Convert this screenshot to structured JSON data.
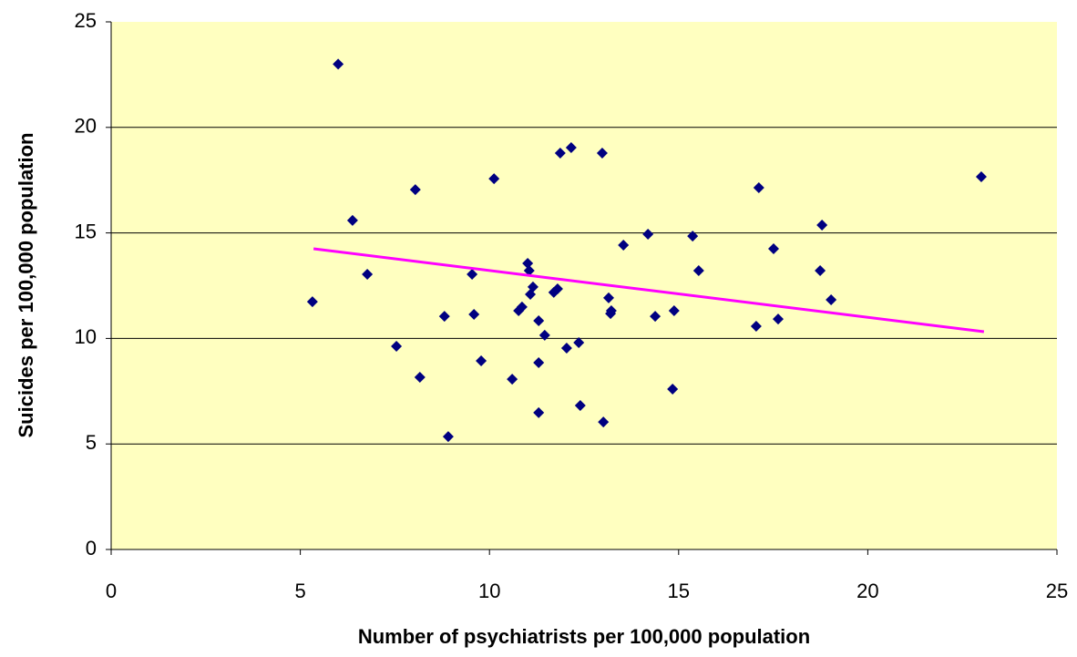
{
  "chart_data": {
    "type": "scatter",
    "x_label": "Number of psychiatrists per 100,000 population",
    "y_label": "Suicides per 100,000 population",
    "xlim": [
      0,
      25
    ],
    "ylim": [
      0,
      25
    ],
    "xticks": [
      0,
      5,
      10,
      15,
      20,
      25
    ],
    "yticks": [
      0,
      5,
      10,
      15,
      20,
      25
    ],
    "grid": true,
    "background": "#ffffc0",
    "series": [
      {
        "color": "#000080",
        "x": [
          5.32,
          6.0,
          6.38,
          6.77,
          7.54,
          8.04,
          8.16,
          8.81,
          8.91,
          9.54,
          9.59,
          9.78,
          10.12,
          10.6,
          10.77,
          10.86,
          11.01,
          11.05,
          11.08,
          11.15,
          11.3,
          11.3,
          11.3,
          11.46,
          11.7,
          11.8,
          11.87,
          12.04,
          12.16,
          12.36,
          12.4,
          12.98,
          13.01,
          13.15,
          13.2,
          13.22,
          13.54,
          14.19,
          14.38,
          14.84,
          14.88,
          15.37,
          15.53,
          17.05,
          17.12,
          17.51,
          17.63,
          18.74,
          18.79,
          19.03,
          23.0
        ],
        "values": [
          11.74,
          23.0,
          15.59,
          13.04,
          9.63,
          17.05,
          8.16,
          11.05,
          5.35,
          13.04,
          11.14,
          8.94,
          17.57,
          8.07,
          11.31,
          11.49,
          13.56,
          13.21,
          12.09,
          12.44,
          10.84,
          8.85,
          6.48,
          10.15,
          12.18,
          12.35,
          18.78,
          9.54,
          19.04,
          9.8,
          6.82,
          18.78,
          6.04,
          11.92,
          11.18,
          11.31,
          14.42,
          14.94,
          11.05,
          7.6,
          11.31,
          14.85,
          13.21,
          10.58,
          17.14,
          14.25,
          10.92,
          13.21,
          15.37,
          11.83,
          17.66
        ]
      }
    ],
    "trendline": {
      "x": [
        5.35,
        23.07
      ],
      "values": [
        14.25,
        10.32
      ],
      "color": "#ff00ff"
    }
  }
}
